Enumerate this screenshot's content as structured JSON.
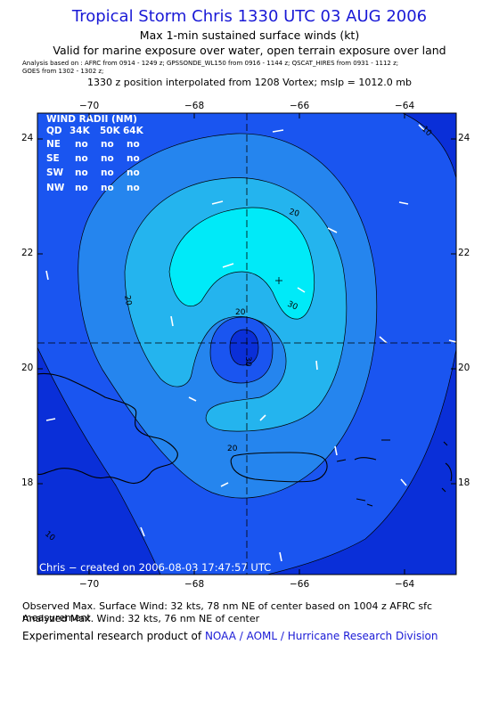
{
  "header": {
    "title": "Tropical Storm Chris 1330 UTC 03 AUG 2006",
    "subtitle1": "Max 1-min sustained surface winds (kt)",
    "subtitle2": "Valid for marine exposure over water, open terrain exposure over land",
    "analysis_line1": "Analysis based on : AFRC from 0914 - 1249 z;  GPSSONDE_WL150 from 0916 - 1144 z;  QSCAT_HIRES from 0931 - 1112 z;",
    "analysis_line2": "GOES from 1302 - 1302 z;",
    "position_line": "1330 z position interpolated from 1208 Vortex; mslp = 1012.0 mb"
  },
  "map": {
    "lon_ticks": [
      "−70",
      "−68",
      "−66",
      "−64"
    ],
    "lat_ticks": [
      "24",
      "22",
      "20",
      "18"
    ],
    "contour_labels": [
      "20",
      "20",
      "20",
      "30",
      "30",
      "20",
      "10",
      "10"
    ],
    "credit": "Chris − created on 2006-08-03 17:47:57 UTC"
  },
  "wind_radii": {
    "title": "WIND RADII (NM)",
    "header": [
      "QD",
      "34K",
      "50K",
      "64K"
    ],
    "rows": [
      [
        "NE",
        "no",
        "no",
        "no"
      ],
      [
        "SE",
        "no",
        "no",
        "no"
      ],
      [
        "SW",
        "no",
        "no",
        "no"
      ],
      [
        "NW",
        "no",
        "no",
        "no"
      ]
    ]
  },
  "footer": {
    "observed": "Observed Max. Surface Wind: 32 kts, 78 nm NE of center based on 1004 z AFRC sfc measurement",
    "analyzed": "Analyzed Max. Wind: 32 kts, 76 nm NE of center",
    "product_prefix": "Experimental research product of",
    "org": "NOAA / AOML / Hurricane Research Division"
  },
  "colors": {
    "level_0": "#0a2fd8",
    "level_10": "#1a55f0",
    "level_20": "#2585ee",
    "level_30": "#24b4ee",
    "level_max": "#00eaf8",
    "title": "#1a1ad6"
  }
}
